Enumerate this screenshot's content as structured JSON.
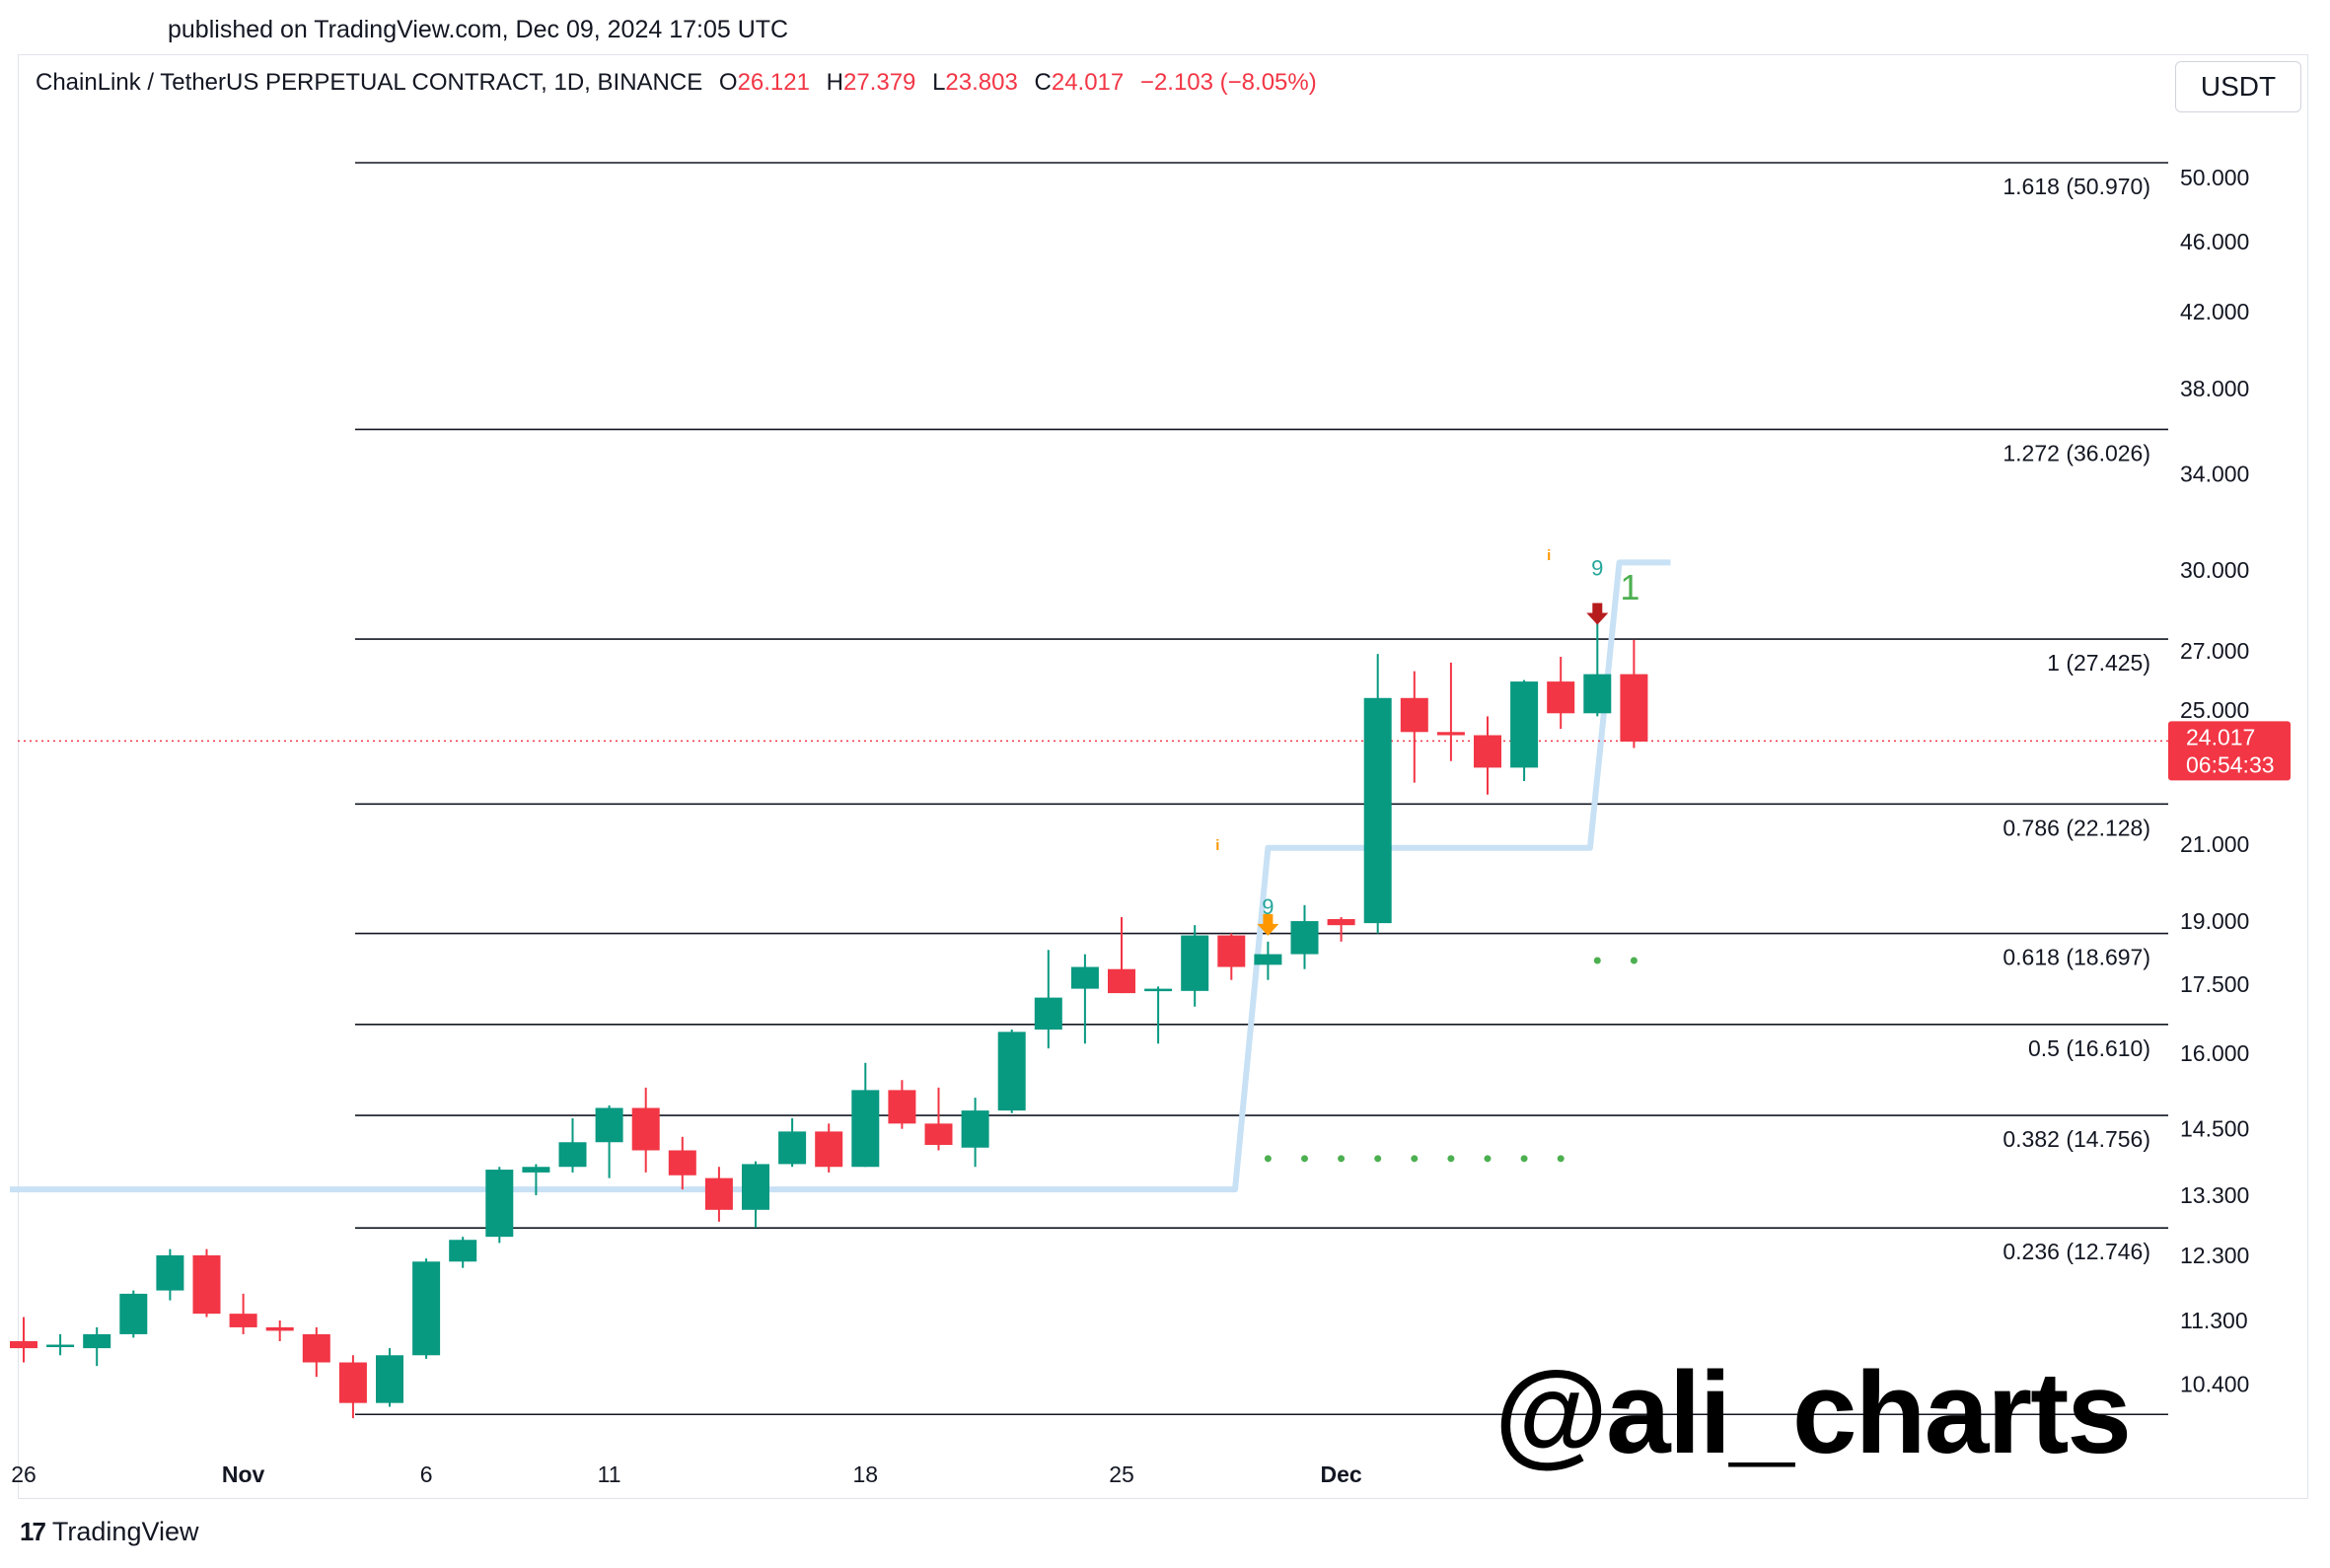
{
  "published": "published on TradingView.com, Dec 09, 2024 17:05 UTC",
  "header": {
    "symbol": "ChainLink / TetherUS PERPETUAL CONTRACT, 1D, BINANCE",
    "o_label": "O",
    "o_value": "26.121",
    "h_label": "H",
    "h_value": "27.379",
    "l_label": "L",
    "l_value": "23.803",
    "c_label": "C",
    "c_value": "24.017",
    "change": "−2.103 (−8.05%)"
  },
  "currency": "USDT",
  "footer_logo": "TradingView",
  "watermark": "@ali_charts",
  "colors": {
    "up": "#089981",
    "down": "#f23645",
    "line": "#c8e1f5",
    "dots": "#4caf50",
    "arrow_down": "#b71c1c",
    "arrow_orange": "#ff9800"
  },
  "chart_data": {
    "type": "candlestick",
    "y_axis": {
      "scale": "log",
      "range": [
        9.8,
        54.0
      ],
      "ticks": [
        "50.000",
        "46.000",
        "42.000",
        "38.000",
        "34.000",
        "30.000",
        "27.000",
        "25.000",
        "21.000",
        "19.000",
        "17.500",
        "16.000",
        "14.500",
        "13.300",
        "12.300",
        "11.300",
        "10.400"
      ]
    },
    "x_axis": {
      "ticks": [
        {
          "label": "26",
          "index": 0,
          "bold": false
        },
        {
          "label": "Nov",
          "index": 6,
          "bold": true
        },
        {
          "label": "6",
          "index": 11,
          "bold": false
        },
        {
          "label": "11",
          "index": 16,
          "bold": false
        },
        {
          "label": "18",
          "index": 23,
          "bold": false
        },
        {
          "label": "25",
          "index": 30,
          "bold": false
        },
        {
          "label": "Dec",
          "index": 36,
          "bold": true
        }
      ]
    },
    "last_price": {
      "value": 24.017,
      "label": "24.017",
      "countdown": "06:54:33"
    },
    "fib_levels": [
      {
        "label": "1.618 (50.970)",
        "value": 50.97
      },
      {
        "label": "1.272 (36.026)",
        "value": 36.026
      },
      {
        "label": "1 (27.425)",
        "value": 27.425
      },
      {
        "label": "0.786 (22.128)",
        "value": 22.128
      },
      {
        "label": "0.618 (18.697)",
        "value": 18.697
      },
      {
        "label": "0.5 (16.610)",
        "value": 16.61
      },
      {
        "label": "0.382 (14.756)",
        "value": 14.756
      },
      {
        "label": "0.236 (12.746)",
        "value": 12.746
      },
      {
        "label": "",
        "value": 10.0
      }
    ],
    "candles": [
      {
        "o": 11.0,
        "h": 11.35,
        "l": 10.7,
        "c": 10.9
      },
      {
        "o": 10.95,
        "h": 11.1,
        "l": 10.8,
        "c": 10.95
      },
      {
        "o": 10.9,
        "h": 11.2,
        "l": 10.65,
        "c": 11.1
      },
      {
        "o": 11.1,
        "h": 11.75,
        "l": 11.05,
        "c": 11.7
      },
      {
        "o": 11.75,
        "h": 12.4,
        "l": 11.6,
        "c": 12.3
      },
      {
        "o": 12.3,
        "h": 12.4,
        "l": 11.35,
        "c": 11.4
      },
      {
        "o": 11.4,
        "h": 11.7,
        "l": 11.1,
        "c": 11.2
      },
      {
        "o": 11.2,
        "h": 11.3,
        "l": 11.0,
        "c": 11.15
      },
      {
        "o": 11.1,
        "h": 11.2,
        "l": 10.5,
        "c": 10.7
      },
      {
        "o": 10.7,
        "h": 10.8,
        "l": 9.95,
        "c": 10.15
      },
      {
        "o": 10.15,
        "h": 10.9,
        "l": 10.1,
        "c": 10.8
      },
      {
        "o": 10.8,
        "h": 12.25,
        "l": 10.75,
        "c": 12.2
      },
      {
        "o": 12.2,
        "h": 12.6,
        "l": 12.1,
        "c": 12.55
      },
      {
        "o": 12.6,
        "h": 13.8,
        "l": 12.5,
        "c": 13.75
      },
      {
        "o": 13.7,
        "h": 13.85,
        "l": 13.3,
        "c": 13.8
      },
      {
        "o": 13.8,
        "h": 14.7,
        "l": 13.7,
        "c": 14.25
      },
      {
        "o": 14.25,
        "h": 14.95,
        "l": 13.6,
        "c": 14.9
      },
      {
        "o": 14.9,
        "h": 15.3,
        "l": 13.7,
        "c": 14.1
      },
      {
        "o": 14.1,
        "h": 14.35,
        "l": 13.4,
        "c": 13.65
      },
      {
        "o": 13.6,
        "h": 13.8,
        "l": 12.85,
        "c": 13.05
      },
      {
        "o": 13.05,
        "h": 13.9,
        "l": 12.75,
        "c": 13.85
      },
      {
        "o": 13.85,
        "h": 14.7,
        "l": 13.8,
        "c": 14.45
      },
      {
        "o": 14.45,
        "h": 14.6,
        "l": 13.7,
        "c": 13.8
      },
      {
        "o": 13.8,
        "h": 15.8,
        "l": 13.8,
        "c": 15.25
      },
      {
        "o": 15.25,
        "h": 15.45,
        "l": 14.5,
        "c": 14.6
      },
      {
        "o": 14.6,
        "h": 15.3,
        "l": 14.1,
        "c": 14.2
      },
      {
        "o": 14.15,
        "h": 15.1,
        "l": 13.8,
        "c": 14.85
      },
      {
        "o": 14.85,
        "h": 16.5,
        "l": 14.8,
        "c": 16.45
      },
      {
        "o": 16.5,
        "h": 18.3,
        "l": 16.1,
        "c": 17.2
      },
      {
        "o": 17.4,
        "h": 18.2,
        "l": 16.2,
        "c": 17.9
      },
      {
        "o": 17.85,
        "h": 19.1,
        "l": 17.3,
        "c": 17.3
      },
      {
        "o": 17.4,
        "h": 17.45,
        "l": 16.2,
        "c": 17.4
      },
      {
        "o": 17.35,
        "h": 18.9,
        "l": 17.0,
        "c": 18.65
      },
      {
        "o": 18.65,
        "h": 18.7,
        "l": 17.6,
        "c": 17.9
      },
      {
        "o": 17.95,
        "h": 18.5,
        "l": 17.6,
        "c": 18.2
      },
      {
        "o": 18.2,
        "h": 19.4,
        "l": 17.85,
        "c": 19.0
      },
      {
        "o": 19.05,
        "h": 19.1,
        "l": 18.5,
        "c": 18.9
      },
      {
        "o": 18.95,
        "h": 26.9,
        "l": 18.7,
        "c": 25.4
      },
      {
        "o": 25.4,
        "h": 26.3,
        "l": 22.75,
        "c": 24.3
      },
      {
        "o": 24.3,
        "h": 26.6,
        "l": 23.4,
        "c": 24.2
      },
      {
        "o": 24.2,
        "h": 24.8,
        "l": 22.4,
        "c": 23.2
      },
      {
        "o": 23.2,
        "h": 26.0,
        "l": 22.8,
        "c": 25.95
      },
      {
        "o": 25.95,
        "h": 26.8,
        "l": 24.4,
        "c": 24.9
      },
      {
        "o": 24.9,
        "h": 28.3,
        "l": 24.8,
        "c": 26.2
      },
      {
        "o": 26.2,
        "h": 27.4,
        "l": 23.8,
        "c": 24.0
      }
    ],
    "supertrend": [
      {
        "from": 0,
        "to": 33.1,
        "value": 13.4
      },
      {
        "from": 34.0,
        "to": 42.8,
        "value": 20.9
      },
      {
        "from": 43.6,
        "to": 45.0,
        "value": 30.3
      }
    ],
    "annotations": {
      "nine_labels": [
        {
          "index": 34,
          "text": "9"
        },
        {
          "index": 43,
          "text": "9"
        }
      ],
      "info_labels": [
        {
          "index": 33,
          "text": "i"
        },
        {
          "index": 42,
          "text": "i"
        }
      ],
      "down_arrows": [
        {
          "index": 34,
          "kind": "orange"
        },
        {
          "index": 43,
          "kind": "dark"
        }
      ],
      "one_label": {
        "index": 44,
        "text": "1"
      },
      "dots_row_low": {
        "from": 34,
        "to": 42,
        "value": 13.95
      },
      "dots_row_high": {
        "from": 43,
        "to": 44,
        "value": 18.05
      }
    }
  }
}
